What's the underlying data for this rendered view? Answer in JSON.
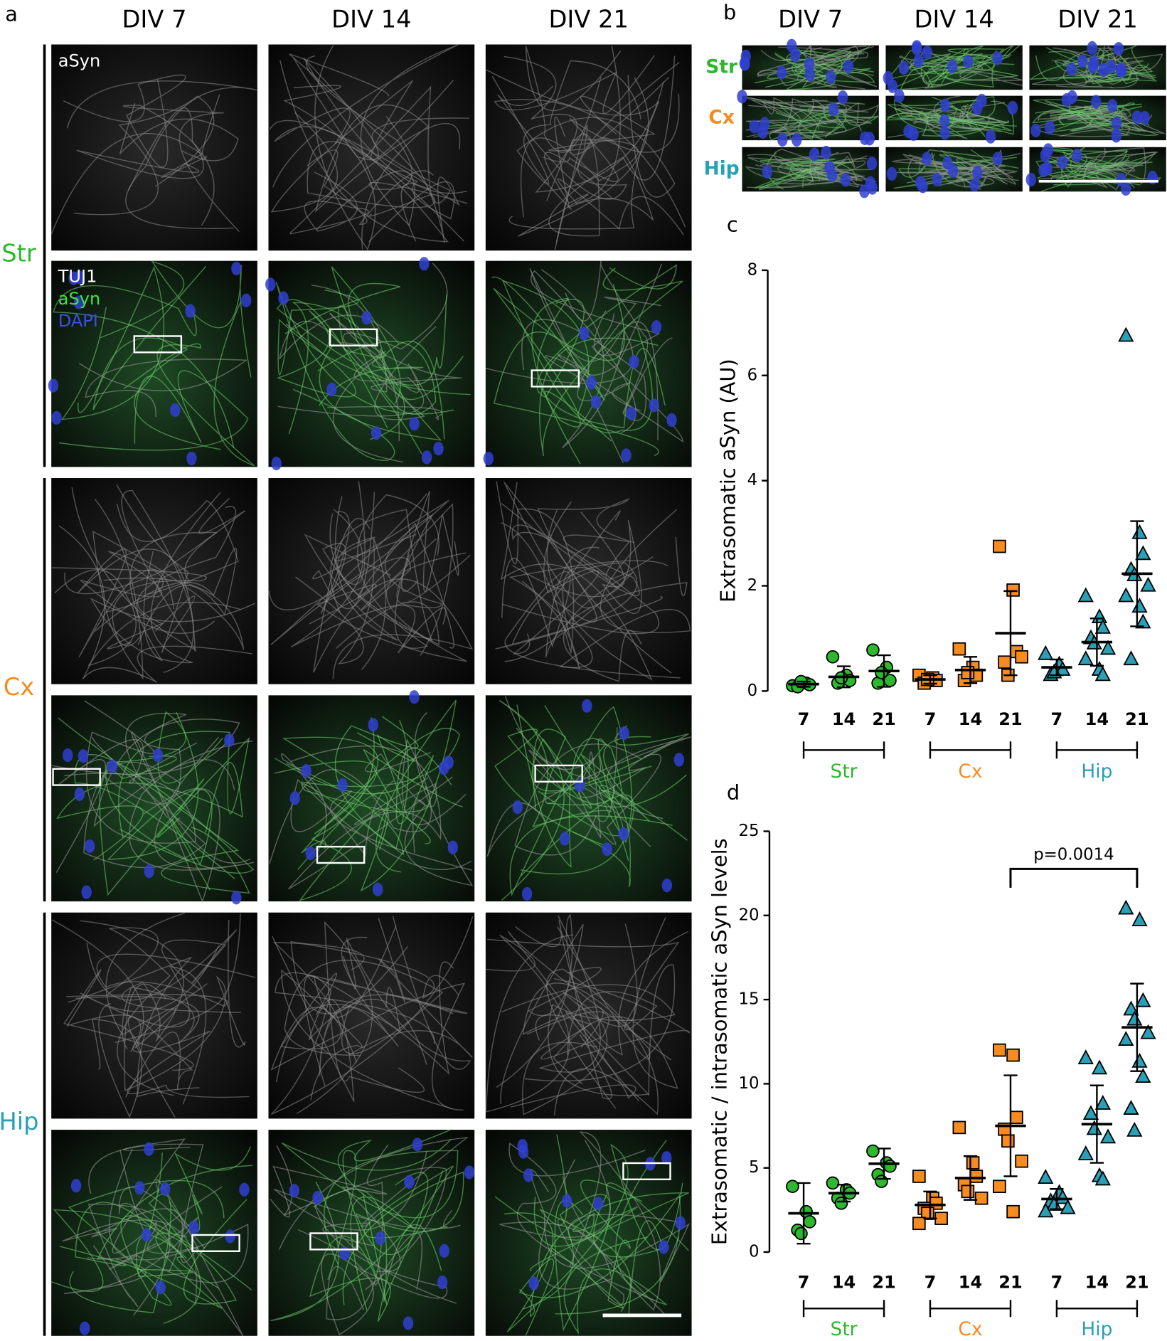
{
  "panel_a": {
    "label": "a",
    "columns": [
      "DIV 7",
      "DIV 14",
      "DIV 21"
    ],
    "rows": [
      "Str",
      "Cx",
      "Hip"
    ],
    "single_channel": "aSyn",
    "merge_channels": [
      "TUJ1",
      "aSyn",
      "DAPI"
    ]
  },
  "panel_b": {
    "label": "b",
    "columns": [
      "DIV 7",
      "DIV 14",
      "DIV 21"
    ],
    "rows": [
      "Str",
      "Cx",
      "Hip"
    ]
  },
  "chart_data": [
    {
      "type": "scatter",
      "panel": "c",
      "y_label": "Extrasomatic aSyn (AU)",
      "categories": [
        "7",
        "14",
        "21"
      ],
      "ylim": [
        0,
        8
      ],
      "yticks": [
        0,
        2,
        4,
        6,
        8
      ],
      "series": [
        {
          "name": "Str",
          "color": "#2eb82e",
          "marker": "circle",
          "values": [
            [
              0.1,
              0.15,
              0.12,
              0.08,
              0.18
            ],
            [
              0.65,
              0.3,
              0.2,
              0.15,
              0.25
            ],
            [
              0.78,
              0.45,
              0.2,
              0.15,
              0.35
            ]
          ],
          "mean": [
            0.13,
            0.27,
            0.38
          ],
          "sd": [
            0.05,
            0.2,
            0.3
          ]
        },
        {
          "name": "Cx",
          "color": "#f68b1f",
          "marker": "square",
          "values": [
            [
              0.3,
              0.25,
              0.2,
              0.15,
              0.22
            ],
            [
              0.8,
              0.45,
              0.3,
              0.2,
              0.35
            ],
            [
              2.75,
              1.92,
              0.75,
              0.55,
              0.3,
              0.65
            ]
          ],
          "mean": [
            0.22,
            0.4,
            1.1
          ],
          "sd": [
            0.08,
            0.25,
            0.8
          ]
        },
        {
          "name": "Hip",
          "color": "#2a9fb5",
          "marker": "triangle",
          "values": [
            [
              0.7,
              0.5,
              0.4,
              0.3,
              0.35
            ],
            [
              1.8,
              1.4,
              1.2,
              1.0,
              0.9,
              0.8,
              0.6,
              0.4,
              0.3
            ],
            [
              6.75,
              3.0,
              2.6,
              2.3,
              2.2,
              2.0,
              1.8,
              1.6,
              1.3,
              0.6
            ]
          ],
          "mean": [
            0.45,
            0.93,
            2.23
          ],
          "sd": [
            0.15,
            0.45,
            1.0
          ]
        }
      ]
    },
    {
      "type": "scatter",
      "panel": "d",
      "y_label": "Extrasomatic / intrasomatic aSyn levels",
      "categories": [
        "7",
        "14",
        "21"
      ],
      "ylim": [
        0,
        25
      ],
      "yticks": [
        0,
        5,
        10,
        15,
        20,
        25
      ],
      "annotation": "p=0.0014",
      "series": [
        {
          "name": "Str",
          "color": "#2eb82e",
          "marker": "circle",
          "values": [
            [
              3.9,
              2.4,
              1.8,
              1.3,
              1.1
            ],
            [
              4.1,
              3.7,
              3.5,
              3.2,
              2.9
            ],
            [
              6.0,
              5.3,
              5.1,
              4.6,
              4.2
            ]
          ],
          "mean": [
            2.3,
            3.5,
            5.25
          ],
          "sd": [
            1.8,
            0.5,
            0.9
          ]
        },
        {
          "name": "Cx",
          "color": "#f68b1f",
          "marker": "square",
          "values": [
            [
              4.5,
              3.2,
              2.9,
              2.6,
              2.3,
              2.0,
              1.7
            ],
            [
              7.4,
              5.3,
              4.5,
              4.0,
              3.6,
              3.2
            ],
            [
              12.0,
              11.7,
              8.0,
              7.3,
              6.6,
              5.4,
              3.9,
              2.4
            ]
          ],
          "mean": [
            2.8,
            4.4,
            7.5
          ],
          "sd": [
            0.8,
            1.3,
            3.0
          ]
        },
        {
          "name": "Hip",
          "color": "#2a9fb5",
          "marker": "triangle",
          "values": [
            [
              4.4,
              3.5,
              3.2,
              3.0,
              2.8,
              2.6,
              2.4
            ],
            [
              11.5,
              10.9,
              8.8,
              8.2,
              7.3,
              6.8,
              5.8,
              4.5,
              4.3
            ],
            [
              20.4,
              19.7,
              14.9,
              14.4,
              13.8,
              13.0,
              12.6,
              11.3,
              10.4,
              8.5,
              7.2
            ]
          ],
          "mean": [
            3.15,
            7.6,
            13.35
          ],
          "sd": [
            0.6,
            2.3,
            2.6
          ]
        }
      ]
    }
  ]
}
